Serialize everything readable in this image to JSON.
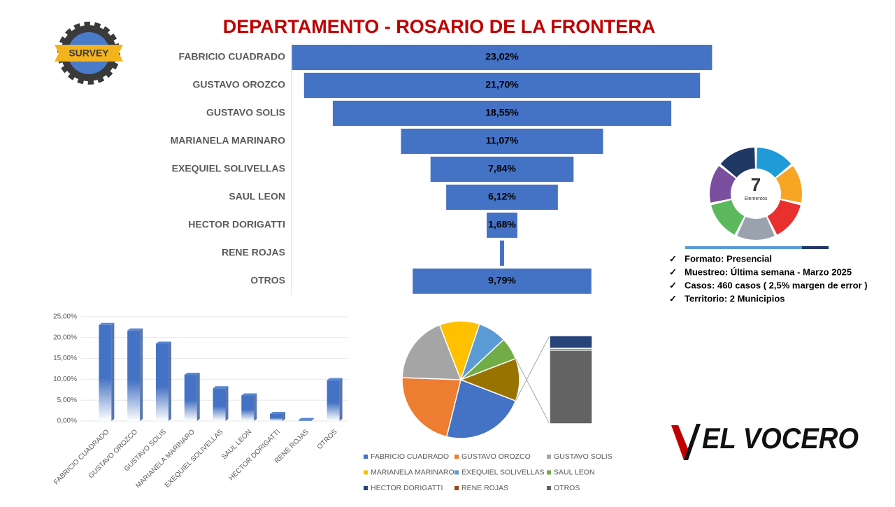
{
  "header": {
    "title": "DEPARTAMENTO - ROSARIO DE LA FRONTERA",
    "badge": "SURVEY",
    "wheel": {
      "number": "7",
      "caption": "Elementos"
    }
  },
  "notes": [
    "Formato: Presencial",
    "Muestreo: Última semana - Marzo 2025",
    "Casos: 460 casos ( 2,5% margen de error )",
    "Territorio: 2 Municipios"
  ],
  "logo": "EL VOCERO",
  "chart_data": [
    {
      "type": "funnel",
      "categories": [
        "FABRICIO CUADRADO",
        "GUSTAVO OROZCO",
        "GUSTAVO SOLIS",
        "MARIANELA MARINARO",
        "EXEQUIEL SOLIVELLAS",
        "SAUL LEON",
        "HECTOR DORIGATTI",
        "RENE ROJAS",
        "OTROS"
      ],
      "values": [
        23.02,
        21.7,
        18.55,
        11.07,
        7.84,
        6.12,
        1.68,
        0.23,
        9.79
      ],
      "value_labels": [
        "23,02%",
        "21,70%",
        "18,55%",
        "11,07%",
        "7,84%",
        "6,12%",
        "1,68%",
        null,
        "9,79%"
      ],
      "color": "#4472c4"
    },
    {
      "type": "bar",
      "categories": [
        "FABRICIO CUADRADO",
        "GUSTAVO OROZCO",
        "GUSTAVO SOLIS",
        "MARIANELA MARINARO",
        "EXEQUIEL SOLIVELLAS",
        "SAUL LEON",
        "HECTOR DORIGATTI",
        "RENE ROJAS",
        "OTROS"
      ],
      "values": [
        23.02,
        21.7,
        18.55,
        11.07,
        7.84,
        6.12,
        1.68,
        0.23,
        9.79
      ],
      "color": "#4472c4",
      "ylim": [
        0,
        25
      ],
      "yticks": [
        {
          "value": 0,
          "label": "0,00%"
        },
        {
          "value": 5,
          "label": "5,00%"
        },
        {
          "value": 10,
          "label": "10,00%"
        },
        {
          "value": 15,
          "label": "15,00%"
        },
        {
          "value": 20,
          "label": "20,00%"
        },
        {
          "value": 25,
          "label": "25,00%"
        }
      ],
      "grid": true
    },
    {
      "type": "pie-of-bar",
      "categories": [
        "FABRICIO CUADRADO",
        "GUSTAVO OROZCO",
        "GUSTAVO SOLIS",
        "MARIANELA MARINARO",
        "EXEQUIEL SOLIVELLAS",
        "SAUL LEON",
        "HECTOR DORIGATTI",
        "RENE ROJAS",
        "OTROS"
      ],
      "values": [
        23.02,
        21.7,
        18.55,
        11.07,
        7.84,
        6.12,
        1.68,
        0.23,
        9.79
      ],
      "colors": [
        "#4472c4",
        "#ed7d31",
        "#a5a5a5",
        "#ffc000",
        "#5b9bd5",
        "#70ad47",
        "#264478",
        "#9e480e",
        "#636363"
      ],
      "split": 3,
      "other_color": "#997300"
    }
  ]
}
